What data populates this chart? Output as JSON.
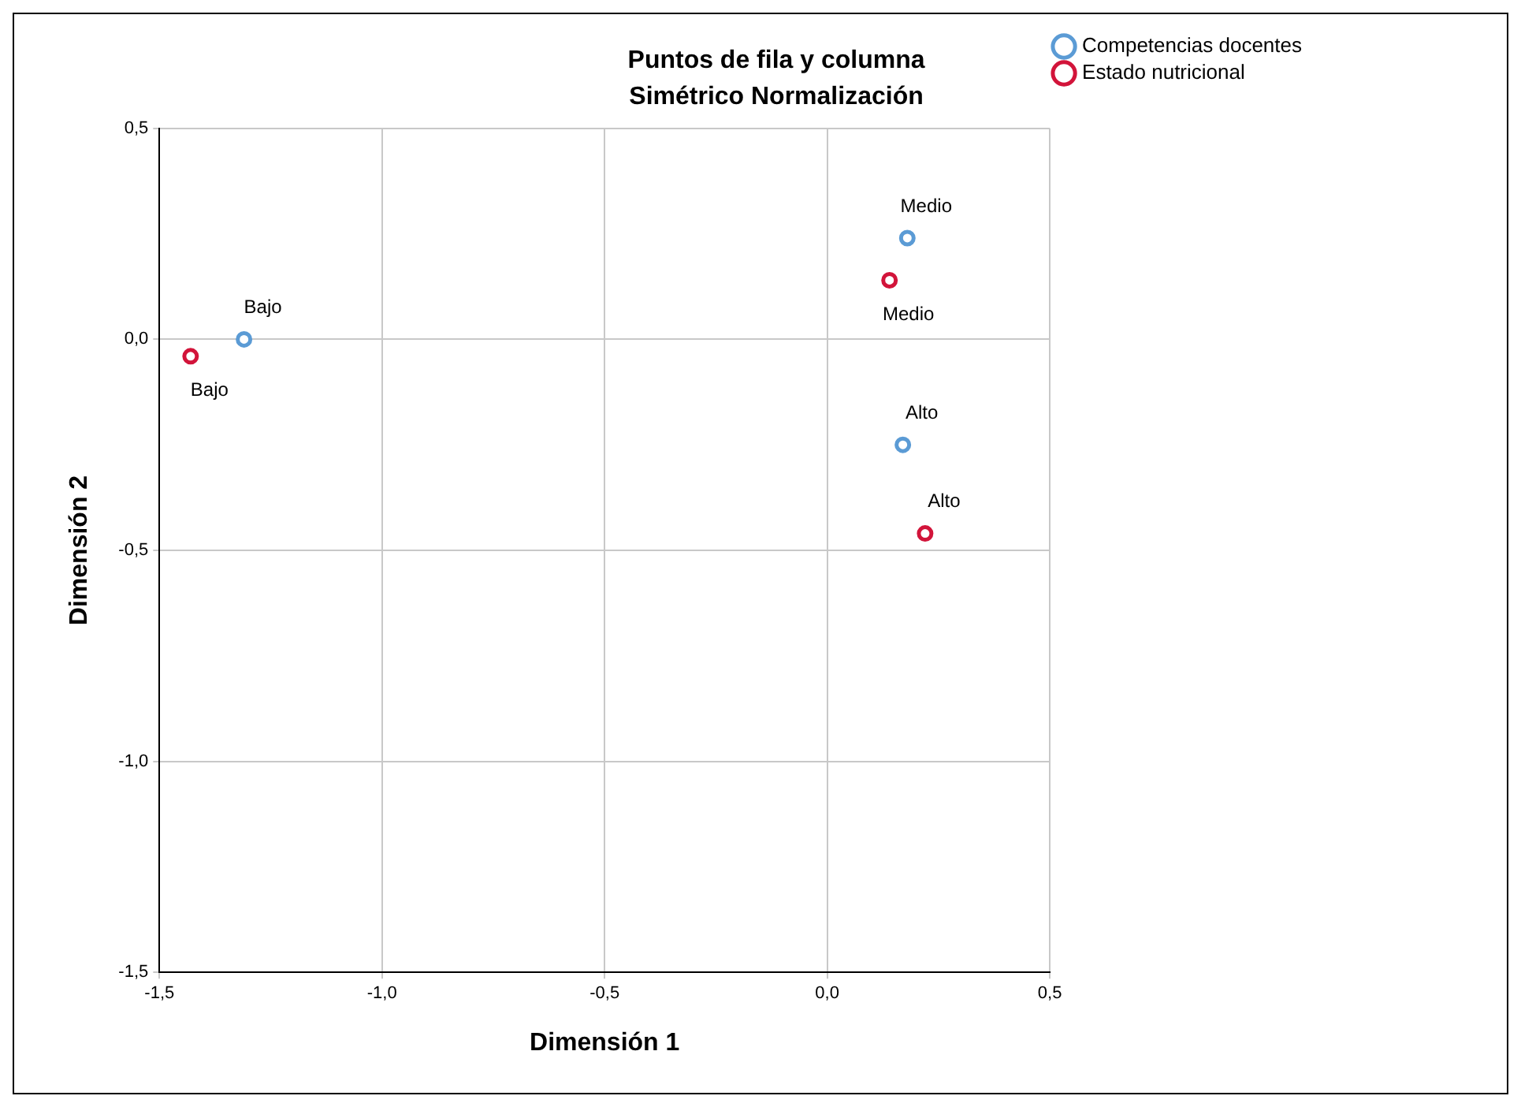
{
  "chart_data": {
    "type": "scatter",
    "title": "Puntos de fila y columna",
    "subtitle": "Simétrico Normalización",
    "xlabel": "Dimensión 1",
    "ylabel": "Dimensión 2",
    "series": [
      {
        "name": "Competencias docentes",
        "color": "#5b9bd5",
        "x": [
          -1.31,
          0.18,
          0.17
        ],
        "values": [
          0.0,
          0.24,
          -0.25
        ]
      },
      {
        "name": "Estado nutricional",
        "color": "#d2143a",
        "x": [
          -1.43,
          0.14,
          0.22
        ],
        "values": [
          -0.04,
          0.14,
          -0.46
        ]
      }
    ],
    "annotations": [
      {
        "text": "Bajo",
        "x": -1.31,
        "y": 0.0
      },
      {
        "text": "Medio",
        "x": 0.18,
        "y": 0.24
      },
      {
        "text": "Alto",
        "x": 0.17,
        "y": -0.25
      },
      {
        "text": "Bajo",
        "x": -1.43,
        "y": -0.04
      },
      {
        "text": "Medio",
        "x": 0.14,
        "y": 0.14
      },
      {
        "text": "Alto",
        "x": 0.22,
        "y": -0.46
      }
    ],
    "xlim": [
      -1.5,
      0.5
    ],
    "ylim": [
      -1.5,
      0.5
    ],
    "xticks": [
      {
        "value": -1.5,
        "label": "-1,5"
      },
      {
        "value": -1,
        "label": "-1,0"
      },
      {
        "value": -0.5,
        "label": "-0,5"
      },
      {
        "value": 0,
        "label": "0,0"
      },
      {
        "value": 0.5,
        "label": "0,5"
      }
    ],
    "yticks": [
      {
        "value": -1.5,
        "label": "-1,5"
      },
      {
        "value": -1,
        "label": "-1,0"
      },
      {
        "value": -0.5,
        "label": "-0,5"
      },
      {
        "value": 0,
        "label": "0,0"
      },
      {
        "value": 0.5,
        "label": "0,5"
      }
    ],
    "grid": true,
    "legend": "top right",
    "marker": "circle"
  }
}
